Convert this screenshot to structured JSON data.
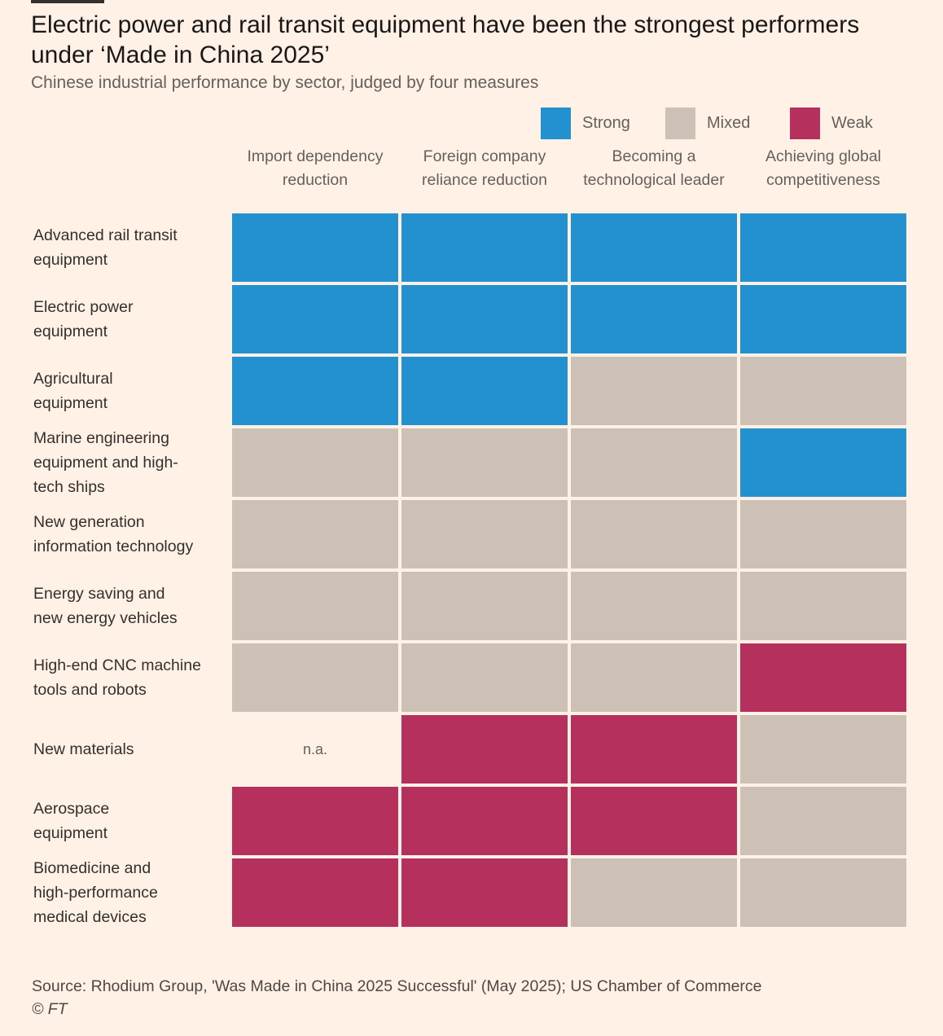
{
  "title": "Electric power and rail transit equipment have been the strongest performers under ‘Made in China 2025’",
  "subtitle": "Chinese industrial performance by sector, judged by four measures",
  "colors": {
    "Strong": "#2390d0",
    "Mixed": "#cdc1b7",
    "Weak": "#b5305c"
  },
  "chart_data": {
    "type": "heatmap",
    "legend": [
      {
        "label": "Strong",
        "color": "#2390d0"
      },
      {
        "label": "Mixed",
        "color": "#cdc1b7"
      },
      {
        "label": "Weak",
        "color": "#b5305c"
      }
    ],
    "legend_placement": "top-right",
    "columns": [
      "Import dependency reduction",
      "Foreign company reliance reduction",
      "Becoming a technological leader",
      "Achieving global competitiveness"
    ],
    "rows": [
      {
        "label": "Advanced rail transit equipment",
        "values": [
          "Strong",
          "Strong",
          "Strong",
          "Strong"
        ]
      },
      {
        "label": "Electric power equipment",
        "values": [
          "Strong",
          "Strong",
          "Strong",
          "Strong"
        ]
      },
      {
        "label": "Agricultural equipment",
        "values": [
          "Strong",
          "Strong",
          "Mixed",
          "Mixed"
        ]
      },
      {
        "label": "Marine engineering equipment and high-tech ships",
        "values": [
          "Mixed",
          "Mixed",
          "Mixed",
          "Strong"
        ]
      },
      {
        "label": "New generation information technology",
        "values": [
          "Mixed",
          "Mixed",
          "Mixed",
          "Mixed"
        ]
      },
      {
        "label": "Energy saving and new energy vehicles",
        "values": [
          "Mixed",
          "Mixed",
          "Mixed",
          "Mixed"
        ]
      },
      {
        "label": "High-end CNC machine tools and robots",
        "values": [
          "Mixed",
          "Mixed",
          "Mixed",
          "Weak"
        ]
      },
      {
        "label": "New materials",
        "values": [
          "n.a.",
          "Weak",
          "Weak",
          "Mixed"
        ]
      },
      {
        "label": "Aerospace equipment",
        "values": [
          "Weak",
          "Weak",
          "Weak",
          "Mixed"
        ]
      },
      {
        "label": "Biomedicine and high-performance medical devices",
        "values": [
          "Weak",
          "Weak",
          "Mixed",
          "Mixed"
        ]
      }
    ]
  },
  "source": "Source: Rhodium Group, 'Was Made in China 2025 Successful' (May 2025); US Chamber of Commerce",
  "credit": "© FT"
}
